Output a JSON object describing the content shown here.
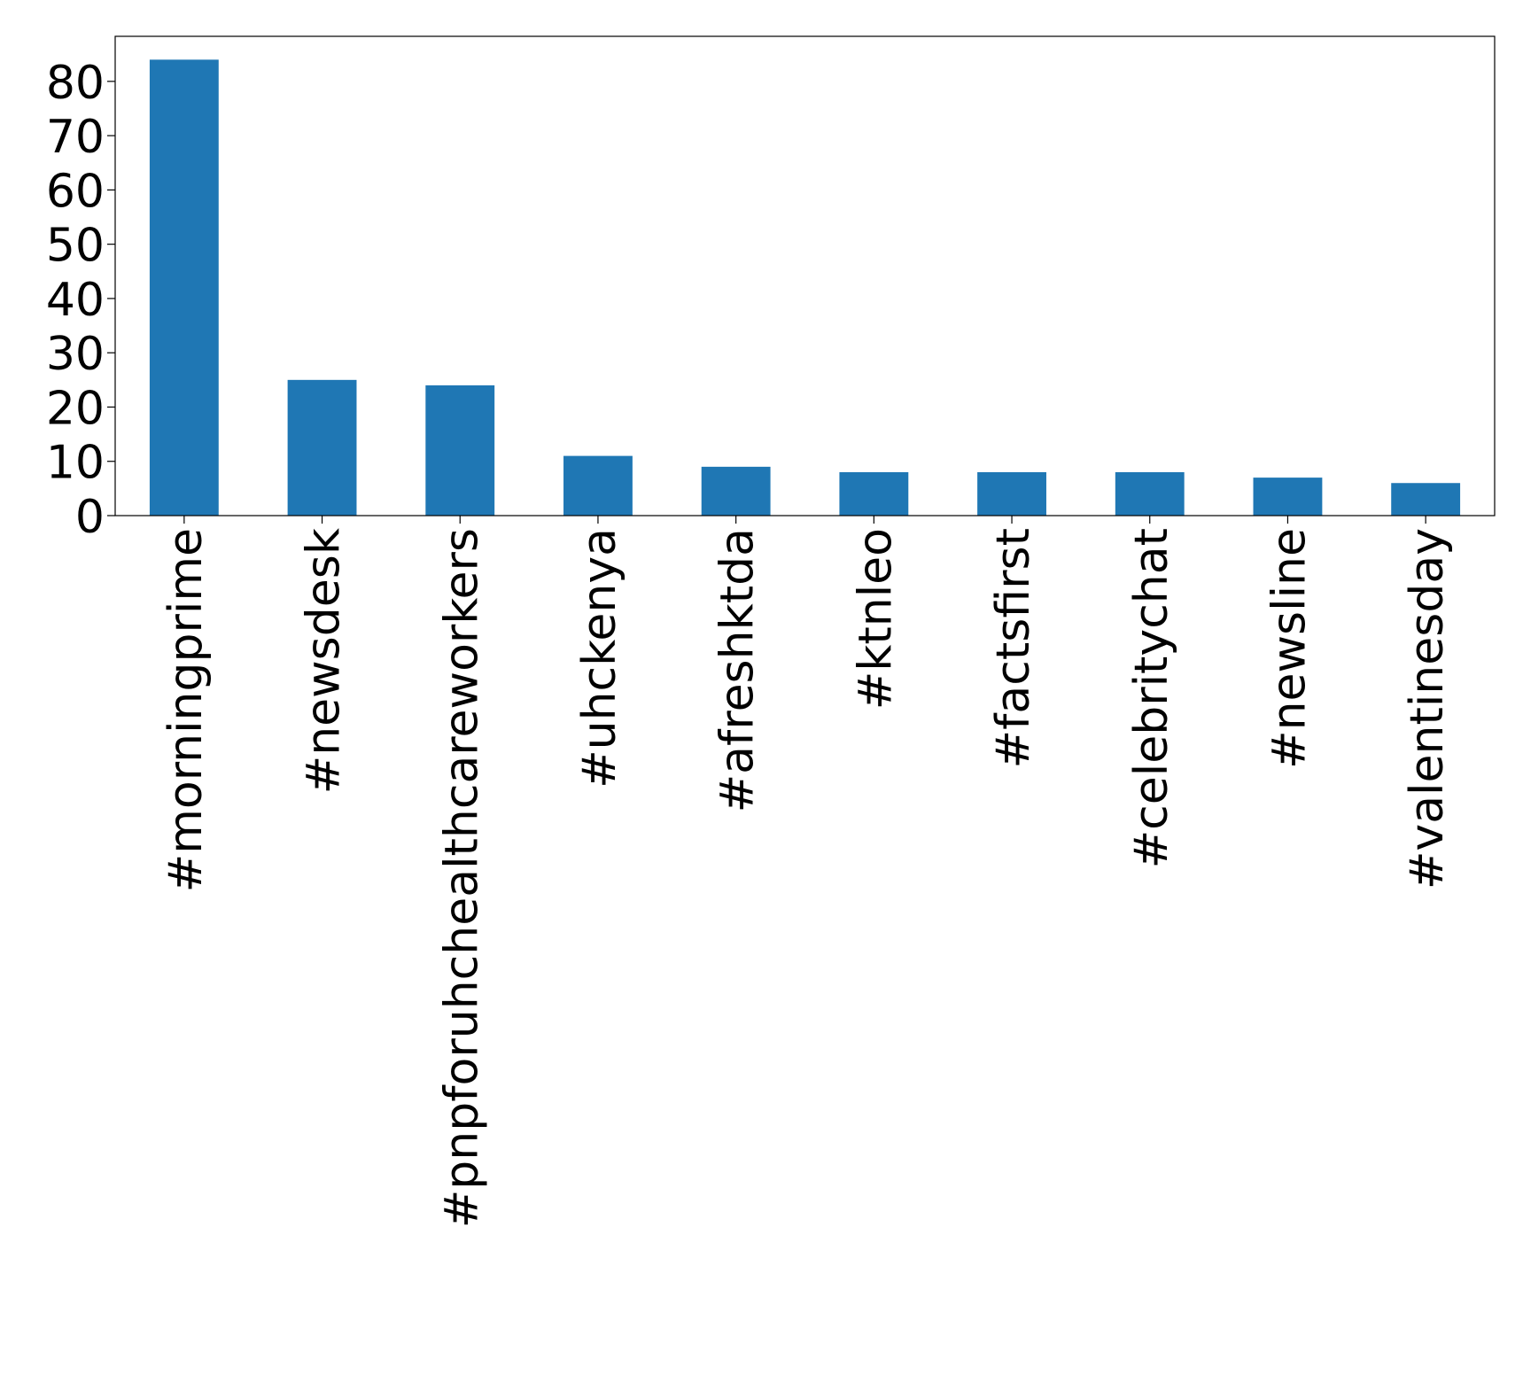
{
  "chart_data": {
    "type": "bar",
    "categories": [
      "#morningprime",
      "#newsdesk",
      "#pnpforuhchealthcareworkers",
      "#uhckenya",
      "#afreshktda",
      "#ktnleo",
      "#factsfirst",
      "#celebritychat",
      "#newsline",
      "#valentinesday"
    ],
    "values": [
      84,
      25,
      24,
      11,
      9,
      8,
      8,
      8,
      7,
      6
    ],
    "color": "#1f77b4",
    "ylim": [
      0,
      88.3
    ],
    "yticks": [
      0,
      10,
      20,
      30,
      40,
      50,
      60,
      70,
      80
    ],
    "grid": false
  }
}
